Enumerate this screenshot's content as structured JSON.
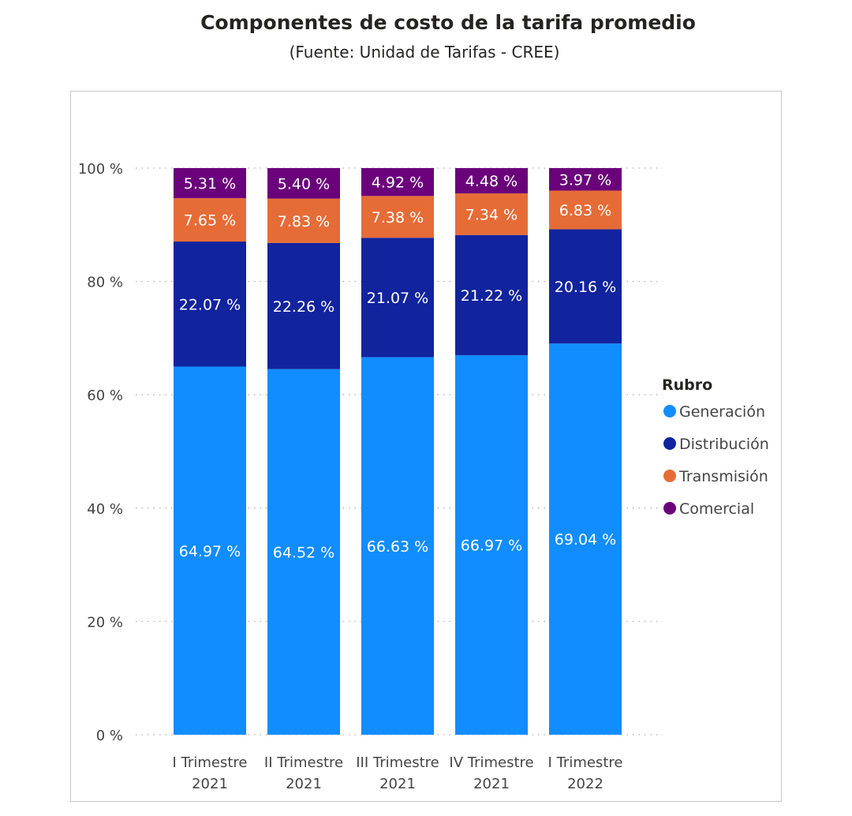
{
  "chart_data": {
    "type": "bar",
    "stacked": "percent",
    "title": "Componentes de costo de la tarifa promedio",
    "subtitle": "(Fuente: Unidad de Tarifas - CREE)",
    "categories": [
      "I Trimestre 2021",
      "II Trimestre 2021",
      "III Trimestre 2021",
      "IV Trimestre 2021",
      "I Trimestre 2022"
    ],
    "series": [
      {
        "name": "Generación",
        "color": "#118dff",
        "values": [
          64.97,
          64.52,
          66.63,
          66.97,
          69.04
        ]
      },
      {
        "name": "Distribución",
        "color": "#12239e",
        "values": [
          22.07,
          22.26,
          21.07,
          21.22,
          20.16
        ]
      },
      {
        "name": "Transmisión",
        "color": "#e66c37",
        "values": [
          7.65,
          7.83,
          7.38,
          7.34,
          6.83
        ]
      },
      {
        "name": "Comercial",
        "color": "#6b007b",
        "values": [
          5.31,
          5.4,
          4.92,
          4.48,
          3.97
        ]
      }
    ],
    "data_labels": [
      [
        "64.97 %",
        "64.52 %",
        "66.63 %",
        "66.97 %",
        "69.04 %"
      ],
      [
        "22.07 %",
        "22.26 %",
        "21.07 %",
        "21.22 %",
        "20.16 %"
      ],
      [
        "7.65 %",
        "7.83 %",
        "7.38 %",
        "7.34 %",
        "6.83 %"
      ],
      [
        "5.31 %",
        "5.40 %",
        "4.92 %",
        "4.48 %",
        "3.97 %"
      ]
    ],
    "y_ticks": [
      0,
      20,
      40,
      60,
      80,
      100
    ],
    "y_tick_labels": [
      "0 %",
      "20 %",
      "40 %",
      "60 %",
      "80 %",
      "100 %"
    ],
    "ylim": [
      0,
      100
    ],
    "xlabel": "",
    "ylabel": "",
    "grid": "dotted",
    "legend": {
      "title": "Rubro",
      "position": "right"
    }
  }
}
